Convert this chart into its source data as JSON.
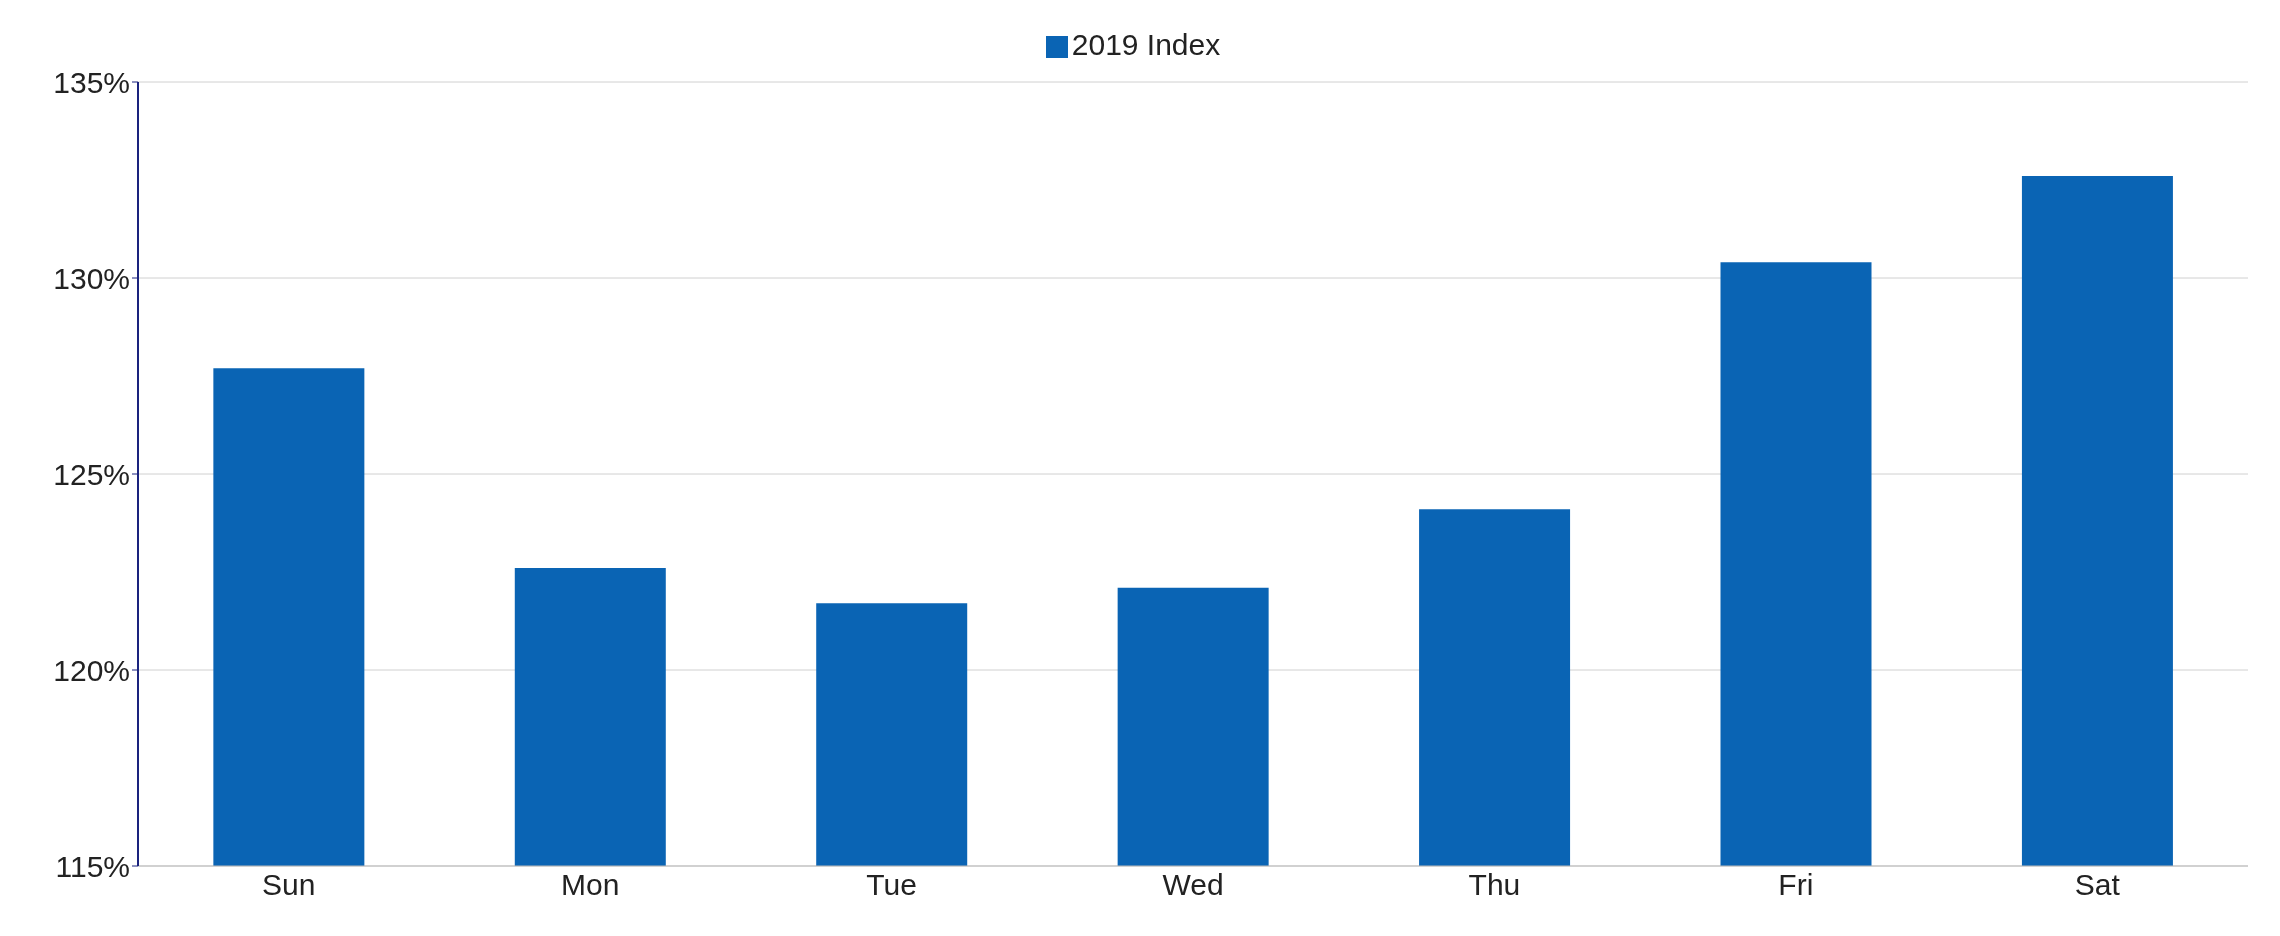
{
  "chart_data": {
    "type": "bar",
    "categories": [
      "Sun",
      "Mon",
      "Tue",
      "Wed",
      "Thu",
      "Fri",
      "Sat"
    ],
    "series": [
      {
        "name": "2019 Index",
        "color": "#0a64b4",
        "values": [
          127.7,
          122.6,
          121.7,
          122.1,
          124.1,
          130.4,
          132.6
        ]
      }
    ],
    "ylim": [
      115,
      135
    ],
    "yticks": [
      {
        "value": 115,
        "label": "115%"
      },
      {
        "value": 120,
        "label": "120%"
      },
      {
        "value": 125,
        "label": "125%"
      },
      {
        "value": 130,
        "label": "130%"
      },
      {
        "value": 135,
        "label": "135%"
      }
    ],
    "grid": "y",
    "legend": "top"
  }
}
